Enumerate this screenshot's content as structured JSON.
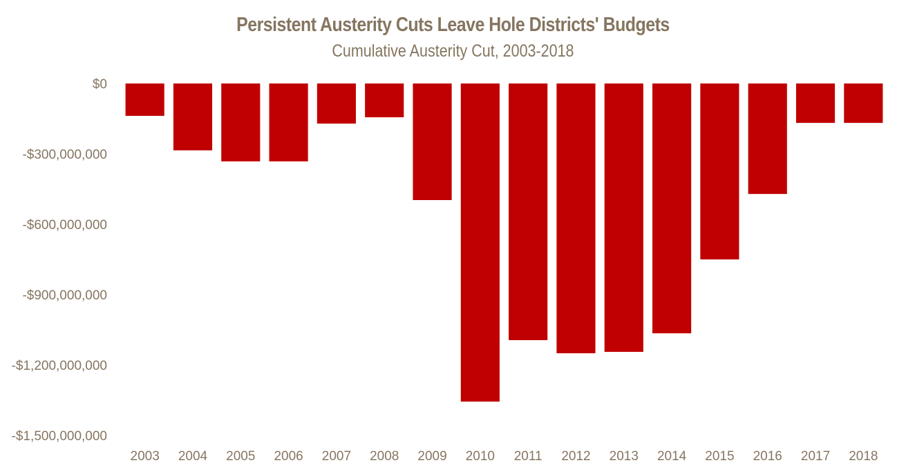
{
  "chart_data": {
    "type": "bar",
    "title": "Persistent Austerity Cuts Leave Hole Districts' Budgets",
    "subtitle": "Cumulative  Austerity Cut, 2003-2018",
    "xlabel": "",
    "ylabel": "",
    "categories": [
      "2003",
      "2004",
      "2005",
      "2006",
      "2007",
      "2008",
      "2009",
      "2010",
      "2011",
      "2012",
      "2013",
      "2014",
      "2015",
      "2016",
      "2017",
      "2018"
    ],
    "values": [
      -138000000,
      -285000000,
      -332000000,
      -332000000,
      -171000000,
      -144000000,
      -497000000,
      -1356000000,
      -1094000000,
      -1150000000,
      -1144000000,
      -1065000000,
      -750000000,
      -471000000,
      -168000000,
      -168000000
    ],
    "ylim": [
      -1500000000,
      0
    ],
    "yticks": [
      0,
      -300000000,
      -600000000,
      -900000000,
      -1200000000,
      -1500000000
    ],
    "ytick_labels": [
      "$0",
      "-$300,000,000",
      "-$600,000,000",
      "-$900,000,000",
      "-$1,200,000,000",
      "-$1,500,000,000"
    ],
    "grid": false,
    "legend": "none",
    "bar_color": "#C00000",
    "text_color": "#857560"
  }
}
